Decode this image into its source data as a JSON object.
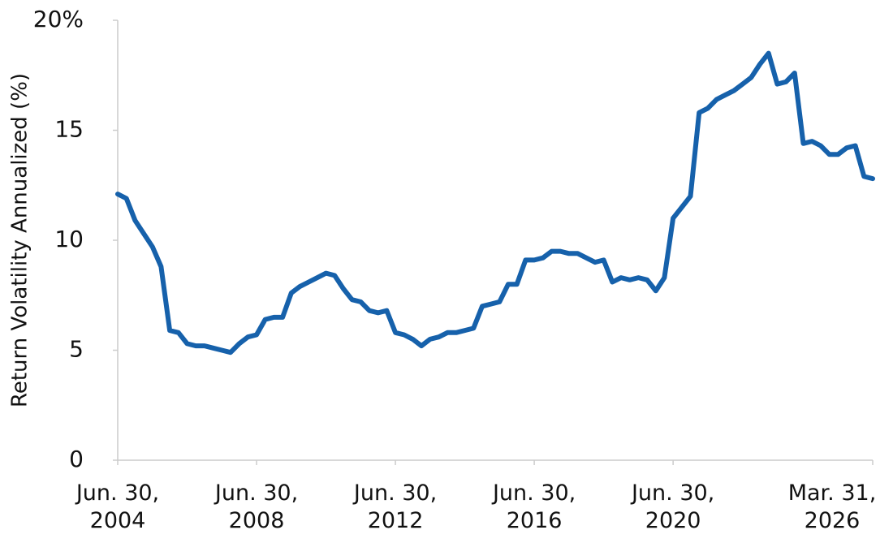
{
  "chart_data": {
    "type": "line",
    "y_label": "Return Volatility Annualized (%)",
    "categories": [
      "Jun. 30, 2004",
      null,
      null,
      null,
      null,
      null,
      null,
      null,
      null,
      null,
      null,
      null,
      null,
      null,
      null,
      null,
      "Jun. 30, 2008",
      null,
      null,
      null,
      null,
      null,
      null,
      null,
      null,
      null,
      null,
      null,
      null,
      null,
      null,
      null,
      "Jun. 30, 2012",
      null,
      null,
      null,
      null,
      null,
      null,
      null,
      null,
      null,
      null,
      null,
      null,
      null,
      null,
      null,
      "Jun. 30, 2016",
      null,
      null,
      null,
      null,
      null,
      null,
      null,
      null,
      null,
      null,
      null,
      null,
      null,
      null,
      null,
      "Jun. 30, 2020",
      null,
      null,
      null,
      null,
      null,
      null,
      null,
      null,
      null,
      null,
      null,
      null,
      null,
      null,
      null,
      null,
      null,
      null,
      null,
      null,
      null,
      null,
      "Mar. 31, 2026"
    ],
    "series": [
      {
        "name": "Return Volatility",
        "color": "#1661ab",
        "values": [
          12.1,
          11.9,
          10.9,
          10.3,
          9.7,
          8.8,
          5.9,
          5.8,
          5.3,
          5.2,
          5.2,
          5.1,
          5.0,
          4.9,
          5.3,
          5.6,
          5.7,
          6.4,
          6.5,
          6.5,
          7.6,
          7.9,
          8.1,
          8.3,
          8.5,
          8.4,
          7.8,
          7.3,
          7.2,
          6.8,
          6.7,
          6.8,
          5.8,
          5.7,
          5.5,
          5.2,
          5.5,
          5.6,
          5.8,
          5.8,
          5.9,
          6.0,
          7.0,
          7.1,
          7.2,
          8.0,
          8.0,
          9.1,
          9.1,
          9.2,
          9.5,
          9.5,
          9.4,
          9.4,
          9.2,
          9.0,
          9.1,
          8.1,
          8.3,
          8.2,
          8.3,
          8.2,
          7.7,
          8.3,
          11.0,
          11.5,
          12.0,
          15.8,
          16.0,
          16.4,
          16.6,
          16.8,
          17.1,
          17.4,
          18.0,
          18.5,
          17.1,
          17.2,
          17.6,
          14.4,
          14.5,
          14.3,
          13.9,
          13.9,
          14.2,
          14.3,
          12.9,
          12.8
        ]
      }
    ],
    "ylim": [
      0,
      20
    ],
    "yticks": [
      0,
      5,
      10,
      15,
      {
        "value": 20,
        "label": "20%"
      }
    ]
  }
}
